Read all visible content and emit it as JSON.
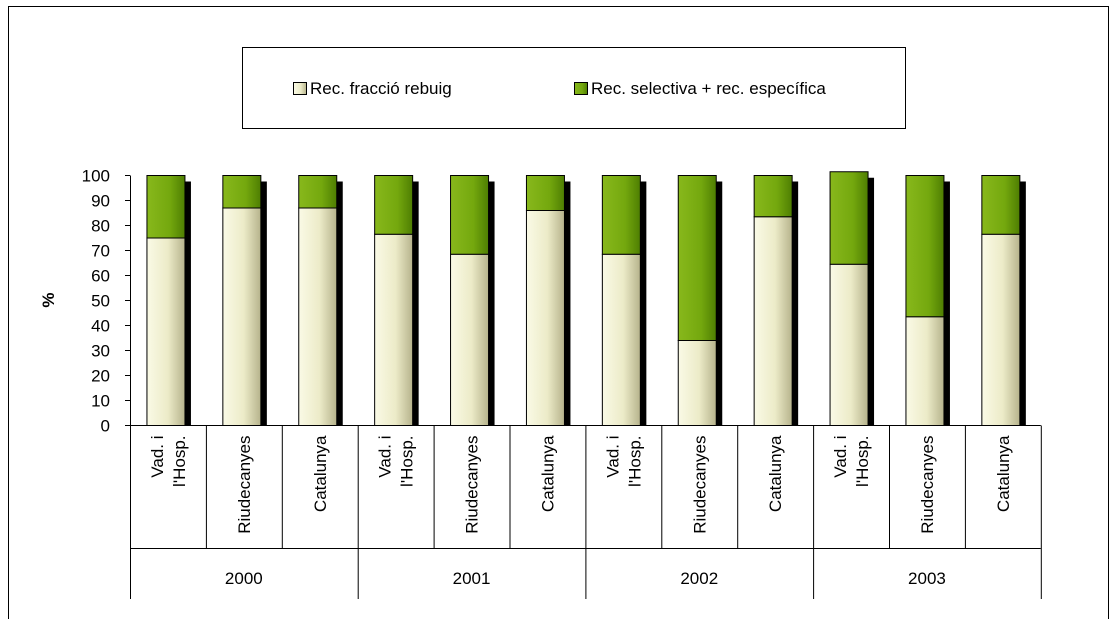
{
  "chart_data": {
    "type": "bar",
    "stacked": true,
    "title": "",
    "xlabel": "",
    "ylabel": "%",
    "ylim": [
      0,
      100
    ],
    "yticks": [
      0,
      10,
      20,
      30,
      40,
      50,
      60,
      70,
      80,
      90,
      100
    ],
    "grid": false,
    "legend_position": "top",
    "groups": [
      {
        "label": "2000",
        "categories": [
          "Vad. i l'Hosp.",
          "Riudecanyes",
          "Catalunya"
        ]
      },
      {
        "label": "2001",
        "categories": [
          "Vad. i l'Hosp.",
          "Riudecanyes",
          "Catalunya"
        ]
      },
      {
        "label": "2002",
        "categories": [
          "Vad. i l'Hosp.",
          "Riudecanyes",
          "Catalunya"
        ]
      },
      {
        "label": "2003",
        "categories": [
          "Vad. i l'Hosp.",
          "Riudecanyes",
          "Catalunya"
        ]
      }
    ],
    "series": [
      {
        "name": "Rec. fracció rebuig",
        "color": "#ECEBC6",
        "values": [
          75,
          87,
          87,
          76.5,
          68.5,
          86,
          68.5,
          34,
          83.5,
          64.5,
          43.5,
          76.5
        ]
      },
      {
        "name": "Rec. selectiva + rec. específica",
        "color": "#78AA10",
        "values": [
          25,
          13,
          13,
          23.5,
          31.5,
          14,
          31.5,
          66,
          16.5,
          37,
          56.5,
          23.5
        ]
      }
    ]
  }
}
